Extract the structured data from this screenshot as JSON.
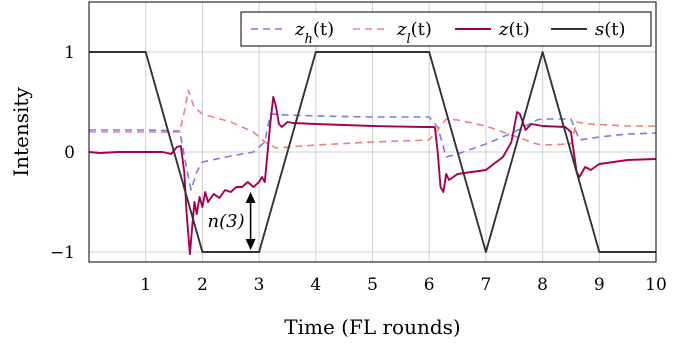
{
  "chart_data": {
    "type": "line",
    "xlabel": "Time (FL rounds)",
    "ylabel": "Intensity",
    "xlim": [
      0,
      10
    ],
    "ylim": [
      -1.1,
      1.5
    ],
    "x_ticks": [
      1,
      2,
      3,
      4,
      5,
      6,
      7,
      8,
      9,
      10
    ],
    "y_ticks": [
      -1,
      0,
      1
    ],
    "y_tick_labels": [
      "−1",
      "0",
      "1"
    ],
    "grid": true,
    "legend_position": "top-right",
    "series": [
      {
        "name": "z_h(t)",
        "style": "dashed",
        "color": "#7a7aee",
        "points": [
          [
            0,
            0.22
          ],
          [
            1.0,
            0.22
          ],
          [
            1.6,
            0.21
          ],
          [
            1.7,
            -0.1
          ],
          [
            1.8,
            -0.38
          ],
          [
            1.9,
            -0.2
          ],
          [
            2.0,
            -0.1
          ],
          [
            2.5,
            -0.04
          ],
          [
            2.9,
            0.0
          ],
          [
            3.1,
            0.1
          ],
          [
            3.2,
            0.38
          ],
          [
            3.5,
            0.37
          ],
          [
            4.0,
            0.36
          ],
          [
            5.0,
            0.35
          ],
          [
            6.0,
            0.35
          ],
          [
            6.15,
            0.25
          ],
          [
            6.3,
            -0.05
          ],
          [
            6.5,
            -0.02
          ],
          [
            7.0,
            0.08
          ],
          [
            7.5,
            0.2
          ],
          [
            7.9,
            0.32
          ],
          [
            8.0,
            0.33
          ],
          [
            8.5,
            0.33
          ],
          [
            8.65,
            0.12
          ],
          [
            9.0,
            0.15
          ],
          [
            9.5,
            0.18
          ],
          [
            10.0,
            0.19
          ]
        ]
      },
      {
        "name": "z_l(t)",
        "style": "dashed",
        "color": "#f08080",
        "points": [
          [
            0,
            0.2
          ],
          [
            1.0,
            0.2
          ],
          [
            1.6,
            0.2
          ],
          [
            1.7,
            0.45
          ],
          [
            1.75,
            0.62
          ],
          [
            1.85,
            0.45
          ],
          [
            2.0,
            0.38
          ],
          [
            2.5,
            0.3
          ],
          [
            2.9,
            0.2
          ],
          [
            3.1,
            0.1
          ],
          [
            3.3,
            0.04
          ],
          [
            4.0,
            0.07
          ],
          [
            5.0,
            0.1
          ],
          [
            6.0,
            0.12
          ],
          [
            6.15,
            0.22
          ],
          [
            6.3,
            0.33
          ],
          [
            6.5,
            0.32
          ],
          [
            7.0,
            0.26
          ],
          [
            7.5,
            0.16
          ],
          [
            7.9,
            0.08
          ],
          [
            8.0,
            0.07
          ],
          [
            8.5,
            0.08
          ],
          [
            8.6,
            0.3
          ],
          [
            8.8,
            0.28
          ],
          [
            9.5,
            0.26
          ],
          [
            10.0,
            0.26
          ]
        ]
      },
      {
        "name": "z(t)",
        "style": "solid",
        "color": "#a8004f",
        "points": [
          [
            0,
            0.0
          ],
          [
            0.2,
            -0.01
          ],
          [
            0.5,
            0.0
          ],
          [
            1.0,
            0.0
          ],
          [
            1.3,
            0.0
          ],
          [
            1.45,
            -0.02
          ],
          [
            1.55,
            0.05
          ],
          [
            1.62,
            0.06
          ],
          [
            1.68,
            -0.2
          ],
          [
            1.72,
            -0.6
          ],
          [
            1.78,
            -1.02
          ],
          [
            1.82,
            -0.75
          ],
          [
            1.86,
            -0.5
          ],
          [
            1.9,
            -0.62
          ],
          [
            1.95,
            -0.45
          ],
          [
            2.0,
            -0.55
          ],
          [
            2.05,
            -0.4
          ],
          [
            2.1,
            -0.5
          ],
          [
            2.2,
            -0.42
          ],
          [
            2.3,
            -0.46
          ],
          [
            2.4,
            -0.38
          ],
          [
            2.5,
            -0.4
          ],
          [
            2.6,
            -0.35
          ],
          [
            2.7,
            -0.35
          ],
          [
            2.8,
            -0.3
          ],
          [
            2.9,
            -0.35
          ],
          [
            3.0,
            -0.3
          ],
          [
            3.05,
            -0.25
          ],
          [
            3.1,
            -0.3
          ],
          [
            3.15,
            0.0
          ],
          [
            3.2,
            0.3
          ],
          [
            3.25,
            0.55
          ],
          [
            3.3,
            0.45
          ],
          [
            3.35,
            0.28
          ],
          [
            3.4,
            0.25
          ],
          [
            3.5,
            0.3
          ],
          [
            3.6,
            0.29
          ],
          [
            4.0,
            0.28
          ],
          [
            5.0,
            0.26
          ],
          [
            5.9,
            0.25
          ],
          [
            6.1,
            0.25
          ],
          [
            6.15,
            0.0
          ],
          [
            6.2,
            -0.35
          ],
          [
            6.25,
            -0.4
          ],
          [
            6.3,
            -0.22
          ],
          [
            6.35,
            -0.28
          ],
          [
            6.5,
            -0.22
          ],
          [
            7.0,
            -0.18
          ],
          [
            7.3,
            -0.05
          ],
          [
            7.45,
            0.1
          ],
          [
            7.55,
            0.4
          ],
          [
            7.6,
            0.38
          ],
          [
            7.7,
            0.22
          ],
          [
            7.8,
            0.28
          ],
          [
            8.0,
            0.26
          ],
          [
            8.4,
            0.25
          ],
          [
            8.5,
            0.2
          ],
          [
            8.55,
            0.0
          ],
          [
            8.6,
            -0.2
          ],
          [
            8.65,
            -0.25
          ],
          [
            8.75,
            -0.15
          ],
          [
            8.85,
            -0.18
          ],
          [
            9.0,
            -0.12
          ],
          [
            9.5,
            -0.08
          ],
          [
            10.0,
            -0.07
          ]
        ]
      },
      {
        "name": "s(t)",
        "style": "solid",
        "color": "#333333",
        "points": [
          [
            0,
            1
          ],
          [
            0.9,
            1
          ],
          [
            1.0,
            1
          ],
          [
            2.0,
            -1
          ],
          [
            3.0,
            -1
          ],
          [
            4.0,
            1
          ],
          [
            6.0,
            1
          ],
          [
            7.0,
            -1
          ],
          [
            8.0,
            1
          ],
          [
            9.0,
            -1
          ],
          [
            10.0,
            -1
          ]
        ]
      }
    ],
    "legend": [
      {
        "symbol": "z",
        "sub": "h",
        "arg": "(t)",
        "style": "dashed",
        "color": "#7a7aee"
      },
      {
        "symbol": "z",
        "sub": "l",
        "arg": "(t)",
        "style": "dashed",
        "color": "#f08080"
      },
      {
        "symbol": "z",
        "sub": "",
        "arg": "(t)",
        "style": "solid",
        "color": "#a8004f"
      },
      {
        "symbol": "s",
        "sub": "",
        "arg": "(t)",
        "style": "solid",
        "color": "#333333"
      }
    ],
    "annotation": {
      "label": "n(3)",
      "x": 2.85,
      "y_from": -0.4,
      "y_to": -0.98
    }
  }
}
